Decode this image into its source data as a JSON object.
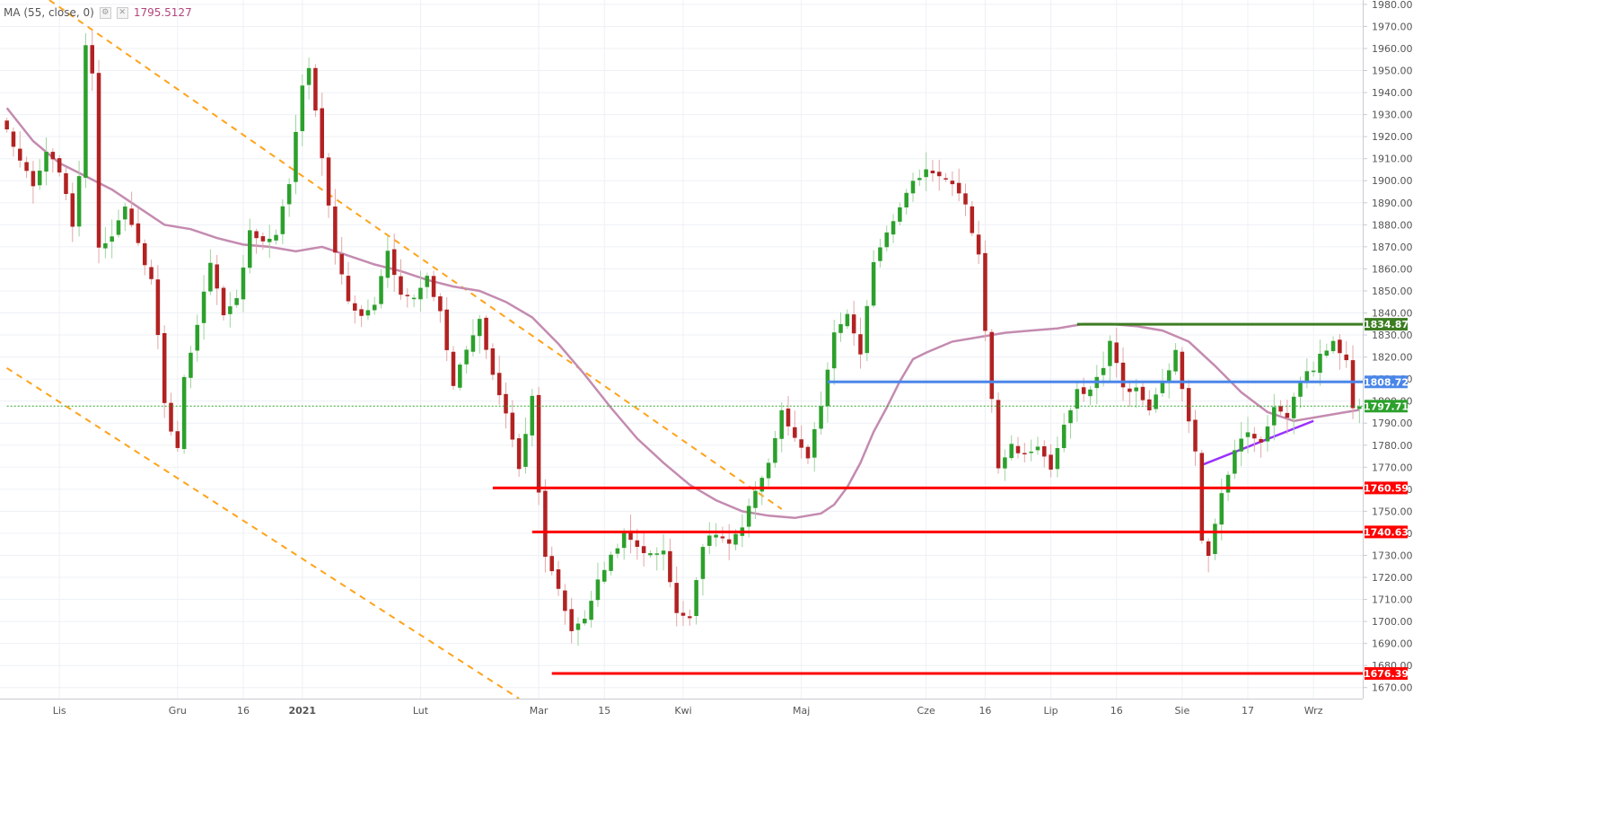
{
  "legend": {
    "indicator": "MA (55, close, 0)",
    "value": "1795.5127",
    "settings_icon": "gear-icon",
    "close_icon": "close-icon"
  },
  "colors": {
    "up": "#2ca02c",
    "down": "#b22222",
    "ma": "#c48bb0",
    "red_level": "#ff0000",
    "blue_level": "#4a86e8",
    "green_level": "#3c7d22",
    "trend": "#ffa31a",
    "uptrend": "#9b30ff",
    "current": "#2ca02c"
  },
  "chart_data": {
    "type": "candlestick",
    "y_axis": {
      "min": 1665,
      "max": 1982,
      "ticks": [
        1670,
        1680,
        1690,
        1700,
        1710,
        1720,
        1730,
        1740,
        1750,
        1760,
        1770,
        1780,
        1790,
        1800,
        1810,
        1820,
        1830,
        1840,
        1850,
        1860,
        1870,
        1880,
        1890,
        1900,
        1910,
        1920,
        1930,
        1940,
        1950,
        1960,
        1970,
        1980
      ],
      "tick_labels": [
        "1670.00",
        "1680.00",
        "1690.00",
        "1700.00",
        "1710.00",
        "1720.00",
        "1730.00",
        "1740.00",
        "1750.00",
        "1760.00",
        "1770.00",
        "1780.00",
        "1790.00",
        "1800.00",
        "1810.00",
        "1820.00",
        "1830.00",
        "1840.00",
        "1850.00",
        "1860.00",
        "1870.00",
        "1880.00",
        "1890.00",
        "1900.00",
        "1910.00",
        "1920.00",
        "1930.00",
        "1940.00",
        "1950.00",
        "1960.00",
        "1970.00",
        "1980.00"
      ]
    },
    "x_axis": {
      "bars": 207,
      "labels": [
        {
          "bar": 8,
          "text": "Lis",
          "bold": false
        },
        {
          "bar": 26,
          "text": "Gru",
          "bold": false
        },
        {
          "bar": 36,
          "text": "16",
          "bold": false
        },
        {
          "bar": 45,
          "text": "2021",
          "bold": true
        },
        {
          "bar": 63,
          "text": "Lut",
          "bold": false
        },
        {
          "bar": 81,
          "text": "Mar",
          "bold": false
        },
        {
          "bar": 91,
          "text": "15",
          "bold": false
        },
        {
          "bar": 103,
          "text": "Kwi",
          "bold": false
        },
        {
          "bar": 121,
          "text": "Maj",
          "bold": false
        },
        {
          "bar": 140,
          "text": "Cze",
          "bold": false
        },
        {
          "bar": 149,
          "text": "16",
          "bold": false
        },
        {
          "bar": 159,
          "text": "Lip",
          "bold": false
        },
        {
          "bar": 169,
          "text": "16",
          "bold": false
        },
        {
          "bar": 179,
          "text": "Sie",
          "bold": false
        },
        {
          "bar": 189,
          "text": "17",
          "bold": false
        },
        {
          "bar": 199,
          "text": "Wrz",
          "bold": false
        }
      ]
    },
    "anchors": [
      [
        0,
        1923
      ],
      [
        2,
        1909
      ],
      [
        4,
        1897
      ],
      [
        6,
        1912
      ],
      [
        8,
        1905
      ],
      [
        10,
        1880
      ],
      [
        11,
        1903
      ],
      [
        12,
        1960
      ],
      [
        13,
        1950
      ],
      [
        14,
        1870
      ],
      [
        16,
        1876
      ],
      [
        18,
        1887
      ],
      [
        20,
        1871
      ],
      [
        22,
        1855
      ],
      [
        23,
        1830
      ],
      [
        24,
        1800
      ],
      [
        25,
        1785
      ],
      [
        26,
        1780
      ],
      [
        27,
        1810
      ],
      [
        29,
        1836
      ],
      [
        31,
        1862
      ],
      [
        33,
        1838
      ],
      [
        35,
        1846
      ],
      [
        37,
        1878
      ],
      [
        39,
        1872
      ],
      [
        41,
        1876
      ],
      [
        43,
        1899
      ],
      [
        45,
        1943
      ],
      [
        46,
        1952
      ],
      [
        47,
        1932
      ],
      [
        48,
        1910
      ],
      [
        50,
        1868
      ],
      [
        52,
        1845
      ],
      [
        54,
        1838
      ],
      [
        56,
        1844
      ],
      [
        58,
        1869
      ],
      [
        60,
        1848
      ],
      [
        62,
        1847
      ],
      [
        64,
        1857
      ],
      [
        66,
        1840
      ],
      [
        68,
        1808
      ],
      [
        70,
        1823
      ],
      [
        72,
        1836
      ],
      [
        74,
        1812
      ],
      [
        76,
        1794
      ],
      [
        78,
        1770
      ],
      [
        80,
        1802
      ],
      [
        81,
        1760
      ],
      [
        82,
        1730
      ],
      [
        84,
        1714
      ],
      [
        86,
        1696
      ],
      [
        88,
        1702
      ],
      [
        90,
        1718
      ],
      [
        92,
        1730
      ],
      [
        94,
        1739
      ],
      [
        96,
        1734
      ],
      [
        98,
        1730
      ],
      [
        100,
        1733
      ],
      [
        102,
        1703
      ],
      [
        104,
        1703
      ],
      [
        106,
        1735
      ],
      [
        108,
        1740
      ],
      [
        110,
        1735
      ],
      [
        112,
        1742
      ],
      [
        114,
        1760
      ],
      [
        116,
        1772
      ],
      [
        118,
        1795
      ],
      [
        120,
        1782
      ],
      [
        122,
        1774
      ],
      [
        124,
        1798
      ],
      [
        126,
        1830
      ],
      [
        128,
        1840
      ],
      [
        130,
        1820
      ],
      [
        132,
        1864
      ],
      [
        134,
        1877
      ],
      [
        136,
        1889
      ],
      [
        138,
        1899
      ],
      [
        140,
        1905
      ],
      [
        142,
        1903
      ],
      [
        144,
        1898
      ],
      [
        146,
        1888
      ],
      [
        148,
        1866
      ],
      [
        150,
        1800
      ],
      [
        151,
        1770
      ],
      [
        153,
        1780
      ],
      [
        155,
        1775
      ],
      [
        157,
        1780
      ],
      [
        159,
        1769
      ],
      [
        161,
        1788
      ],
      [
        163,
        1804
      ],
      [
        165,
        1805
      ],
      [
        167,
        1816
      ],
      [
        168,
        1827
      ],
      [
        170,
        1806
      ],
      [
        172,
        1805
      ],
      [
        174,
        1796
      ],
      [
        176,
        1808
      ],
      [
        178,
        1822
      ],
      [
        179,
        1806
      ],
      [
        181,
        1778
      ],
      [
        182,
        1738
      ],
      [
        183,
        1729
      ],
      [
        185,
        1758
      ],
      [
        187,
        1778
      ],
      [
        189,
        1786
      ],
      [
        191,
        1782
      ],
      [
        193,
        1797
      ],
      [
        195,
        1793
      ],
      [
        197,
        1810
      ],
      [
        199,
        1815
      ],
      [
        200,
        1820
      ],
      [
        202,
        1828
      ],
      [
        204,
        1818
      ],
      [
        205,
        1797
      ],
      [
        206,
        1797
      ]
    ],
    "ma_line": [
      [
        0,
        1933
      ],
      [
        4,
        1918
      ],
      [
        8,
        1908
      ],
      [
        12,
        1902
      ],
      [
        16,
        1896
      ],
      [
        20,
        1888
      ],
      [
        24,
        1880
      ],
      [
        28,
        1878
      ],
      [
        32,
        1874
      ],
      [
        36,
        1871
      ],
      [
        40,
        1870
      ],
      [
        44,
        1868
      ],
      [
        48,
        1870
      ],
      [
        52,
        1866
      ],
      [
        56,
        1862
      ],
      [
        60,
        1859
      ],
      [
        64,
        1855
      ],
      [
        68,
        1852
      ],
      [
        72,
        1850
      ],
      [
        76,
        1845
      ],
      [
        80,
        1838
      ],
      [
        84,
        1826
      ],
      [
        88,
        1812
      ],
      [
        92,
        1797
      ],
      [
        96,
        1783
      ],
      [
        100,
        1772
      ],
      [
        104,
        1762
      ],
      [
        108,
        1755
      ],
      [
        112,
        1750
      ],
      [
        116,
        1748
      ],
      [
        120,
        1747
      ],
      [
        124,
        1749
      ],
      [
        126,
        1753
      ],
      [
        128,
        1761
      ],
      [
        130,
        1772
      ],
      [
        132,
        1786
      ],
      [
        134,
        1797
      ],
      [
        136,
        1809
      ],
      [
        138,
        1819
      ],
      [
        140,
        1822
      ],
      [
        144,
        1827
      ],
      [
        148,
        1829
      ],
      [
        152,
        1831
      ],
      [
        156,
        1832
      ],
      [
        160,
        1833
      ],
      [
        164,
        1835
      ],
      [
        168,
        1835
      ],
      [
        172,
        1834
      ],
      [
        176,
        1832
      ],
      [
        180,
        1827
      ],
      [
        184,
        1816
      ],
      [
        188,
        1804
      ],
      [
        192,
        1795
      ],
      [
        196,
        1791
      ],
      [
        200,
        1793
      ],
      [
        204,
        1795
      ],
      [
        206,
        1796
      ]
    ],
    "horizontal_levels": [
      {
        "value": 1834.87,
        "label": "1834.87",
        "color": "#3c7d22",
        "from_bar": 163
      },
      {
        "value": 1808.72,
        "label": "1808.72",
        "color": "#4a86e8",
        "from_bar": 125
      },
      {
        "value": 1797.71,
        "label": "1797.71",
        "color": "#2ca02c",
        "from_bar": 0,
        "dotted": true
      },
      {
        "value": 1760.59,
        "label": "1760.59",
        "color": "#ff0000",
        "from_bar": 74
      },
      {
        "value": 1740.63,
        "label": "1740.63",
        "color": "#ff0000",
        "from_bar": 80
      },
      {
        "value": 1676.39,
        "label": "1676.39",
        "color": "#ff0000",
        "from_bar": 83
      }
    ],
    "trend_lines": [
      {
        "points": [
          [
            5,
            1985
          ],
          [
            118,
            1751
          ]
        ],
        "color": "#ffa31a",
        "dash": true
      },
      {
        "points": [
          [
            0,
            1815
          ],
          [
            78,
            1665
          ]
        ],
        "color": "#ffa31a",
        "dash": true
      },
      {
        "points": [
          [
            182,
            1771
          ],
          [
            199,
            1791
          ]
        ],
        "color": "#9b30ff",
        "dash": false
      }
    ]
  }
}
